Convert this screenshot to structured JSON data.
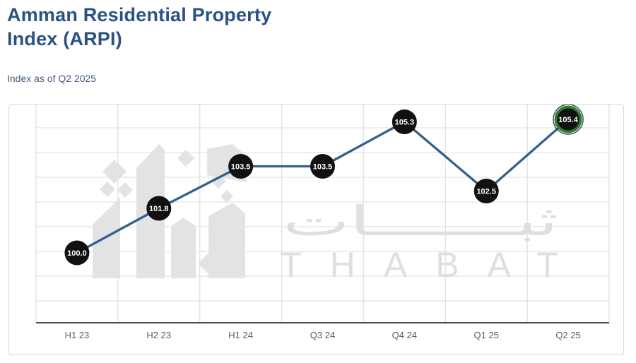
{
  "page": {
    "title_line1": "Amman Residential Property",
    "title_line2": "Index (ARPI)",
    "subtitle": "Index as of Q2 2025"
  },
  "watermark": {
    "arabic": "ثبـــــــات",
    "latin": "THABAT"
  },
  "chart_data": {
    "type": "line",
    "title": "Amman Residential Property Index (ARPI)",
    "subtitle": "Index as of Q2 2025",
    "categories": [
      "H1 23",
      "H2 23",
      "H1 24",
      "Q3 24",
      "Q4 24",
      "Q1 25",
      "Q2 25"
    ],
    "series": [
      {
        "name": "ARPI",
        "values": [
          100.0,
          101.8,
          103.5,
          103.5,
          105.3,
          102.5,
          105.4
        ]
      }
    ],
    "highlight": {
      "index": 6,
      "ring_color": "#2e7d32"
    },
    "xlabel": "",
    "ylabel": "",
    "ylim": [
      97,
      106
    ],
    "grid": true,
    "legend": false,
    "y_axis_labels_visible": false,
    "colors": {
      "title": "#2a5384",
      "subtitle": "#455d7b",
      "line": "#33608f",
      "marker": "#111111",
      "marker_text": "#ffffff",
      "highlight_ring": "#2e7d32",
      "grid": "#e8e8e8",
      "grid_vertical": "#e2e2e2",
      "axis": "#4a4a4a",
      "axis_label": "#595959",
      "watermark": "#e3e3e3",
      "watermark_text": "#dfdfdf"
    }
  }
}
